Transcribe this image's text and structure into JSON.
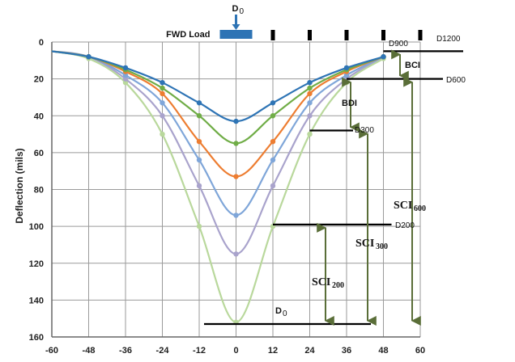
{
  "chart_data": {
    "type": "line",
    "ylabel": "Deflection (mils)",
    "xlabel": "",
    "xlim": [
      -60,
      60
    ],
    "ylim": [
      0,
      160
    ],
    "y_inverted": true,
    "grid": true,
    "x_ticks": [
      "-60",
      "-48",
      "-36",
      "-24",
      "-12",
      "0",
      "12",
      "24",
      "36",
      "48",
      "60"
    ],
    "y_ticks": [
      "0",
      "20",
      "40",
      "60",
      "80",
      "100",
      "120",
      "140",
      "160"
    ],
    "sensor_offsets": [
      -48,
      -36,
      -24,
      -12,
      0,
      12,
      24,
      36,
      48
    ],
    "series": [
      {
        "color": "#2e74b5",
        "marker": "circle",
        "x": [
          -60,
          -48,
          -36,
          -24,
          -12,
          0,
          12,
          24,
          36,
          48
        ],
        "y": [
          5,
          8,
          14,
          22,
          33,
          43,
          33,
          22,
          14,
          8
        ]
      },
      {
        "color": "#70ad47",
        "marker": "circle",
        "x": [
          -60,
          -48,
          -36,
          -24,
          -12,
          0,
          12,
          24,
          36,
          48
        ],
        "y": [
          5,
          8,
          15,
          25,
          40,
          55,
          40,
          25,
          15,
          8
        ]
      },
      {
        "color": "#ed7d31",
        "marker": "circle",
        "x": [
          -60,
          -48,
          -36,
          -24,
          -12,
          0,
          12,
          24,
          36,
          48
        ],
        "y": [
          5,
          8,
          16,
          28,
          54,
          73,
          54,
          28,
          16,
          8
        ]
      },
      {
        "color": "#7fa6d9",
        "marker": "circle",
        "x": [
          -60,
          -48,
          -36,
          -24,
          -12,
          0,
          12,
          24,
          36,
          48
        ],
        "y": [
          5,
          8,
          18,
          33,
          64,
          94,
          64,
          33,
          18,
          8
        ]
      },
      {
        "color": "#a9a3cc",
        "marker": "circle",
        "x": [
          -60,
          -48,
          -36,
          -24,
          -12,
          0,
          12,
          24,
          36,
          48
        ],
        "y": [
          5,
          8,
          20,
          40,
          78,
          115,
          78,
          40,
          20,
          8
        ]
      },
      {
        "color": "#b9d89c",
        "marker": "circle",
        "x": [
          -60,
          -48,
          -36,
          -24,
          -12,
          0,
          12,
          24,
          36,
          48
        ],
        "y": [
          5,
          9,
          22,
          50,
          100,
          152,
          100,
          50,
          22,
          9
        ]
      }
    ],
    "annotations": {
      "load_label": "FWD Load",
      "d0_top": "D",
      "d0_sub": "0",
      "d0_bottom": "D",
      "d0_bottom_sub": "0",
      "d900": "D900",
      "d1200": "D1200",
      "d600": "D600",
      "d300": "D300",
      "d200": "D200",
      "bci": "BCI",
      "bdi": "BDI",
      "sci600": "SCI",
      "sci600_sub": "600",
      "sci300": "SCI",
      "sci300_sub": "300",
      "sci200": "SCI",
      "sci200_sub": "200"
    },
    "colors": {
      "load": "#2e74b5",
      "arrow": "#5a6e38",
      "grid": "#9a9a9a",
      "level_line": "#000000"
    }
  }
}
